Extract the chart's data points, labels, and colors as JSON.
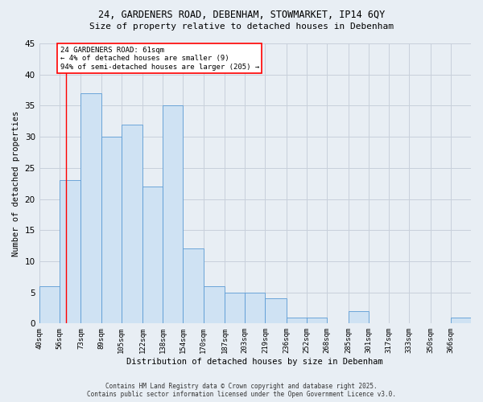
{
  "title_line1": "24, GARDENERS ROAD, DEBENHAM, STOWMARKET, IP14 6QY",
  "title_line2": "Size of property relative to detached houses in Debenham",
  "xlabel": "Distribution of detached houses by size in Debenham",
  "ylabel": "Number of detached properties",
  "bin_labels": [
    "40sqm",
    "56sqm",
    "73sqm",
    "89sqm",
    "105sqm",
    "122sqm",
    "138sqm",
    "154sqm",
    "170sqm",
    "187sqm",
    "203sqm",
    "219sqm",
    "236sqm",
    "252sqm",
    "268sqm",
    "285sqm",
    "301sqm",
    "317sqm",
    "333sqm",
    "350sqm",
    "366sqm"
  ],
  "bin_edges": [
    40,
    56,
    73,
    89,
    105,
    122,
    138,
    154,
    170,
    187,
    203,
    219,
    236,
    252,
    268,
    285,
    301,
    317,
    333,
    350,
    366,
    382
  ],
  "counts": [
    6,
    23,
    37,
    30,
    32,
    22,
    35,
    12,
    6,
    5,
    5,
    4,
    1,
    1,
    0,
    2,
    0,
    0,
    0,
    0,
    1
  ],
  "bar_color": "#cfe2f3",
  "bar_edge_color": "#5b9bd5",
  "grid_color": "#c8d0db",
  "property_line_x": 61,
  "annotation_text": "24 GARDENERS ROAD: 61sqm\n← 4% of detached houses are smaller (9)\n94% of semi-detached houses are larger (205) →",
  "annotation_box_color": "white",
  "annotation_box_edge_color": "red",
  "ylim": [
    0,
    45
  ],
  "yticks": [
    0,
    5,
    10,
    15,
    20,
    25,
    30,
    35,
    40,
    45
  ],
  "footer_line1": "Contains HM Land Registry data © Crown copyright and database right 2025.",
  "footer_line2": "Contains public sector information licensed under the Open Government Licence v3.0.",
  "bg_color": "#e8eef4"
}
